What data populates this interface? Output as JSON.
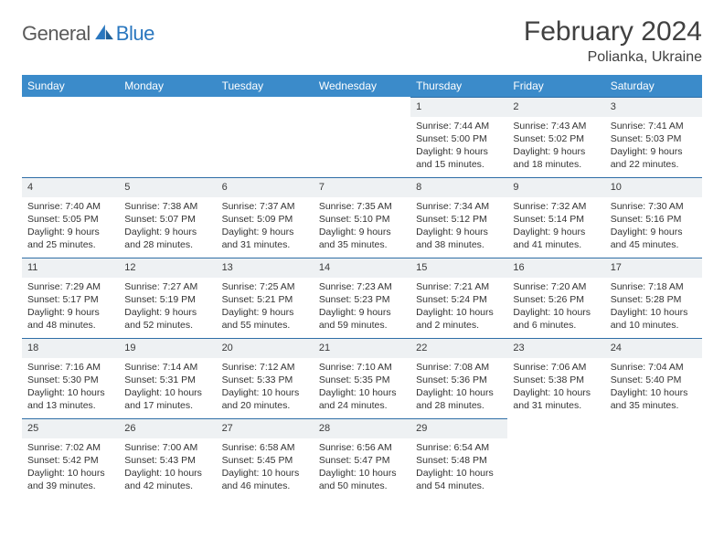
{
  "brand": {
    "general": "General",
    "blue": "Blue"
  },
  "header": {
    "title": "February 2024",
    "location": "Polianka, Ukraine"
  },
  "colors": {
    "header_bg": "#3b8bca",
    "header_text": "#ffffff",
    "daynum_bg": "#eef1f3",
    "daynum_border": "#2f6ea6",
    "body_text": "#333333",
    "logo_gray": "#5a5a5a",
    "logo_blue": "#2a77bf"
  },
  "weekdays": [
    "Sunday",
    "Monday",
    "Tuesday",
    "Wednesday",
    "Thursday",
    "Friday",
    "Saturday"
  ],
  "weeks": [
    [
      null,
      null,
      null,
      null,
      {
        "n": "1",
        "sr": "Sunrise: 7:44 AM",
        "ss": "Sunset: 5:00 PM",
        "d1": "Daylight: 9 hours",
        "d2": "and 15 minutes."
      },
      {
        "n": "2",
        "sr": "Sunrise: 7:43 AM",
        "ss": "Sunset: 5:02 PM",
        "d1": "Daylight: 9 hours",
        "d2": "and 18 minutes."
      },
      {
        "n": "3",
        "sr": "Sunrise: 7:41 AM",
        "ss": "Sunset: 5:03 PM",
        "d1": "Daylight: 9 hours",
        "d2": "and 22 minutes."
      }
    ],
    [
      {
        "n": "4",
        "sr": "Sunrise: 7:40 AM",
        "ss": "Sunset: 5:05 PM",
        "d1": "Daylight: 9 hours",
        "d2": "and 25 minutes."
      },
      {
        "n": "5",
        "sr": "Sunrise: 7:38 AM",
        "ss": "Sunset: 5:07 PM",
        "d1": "Daylight: 9 hours",
        "d2": "and 28 minutes."
      },
      {
        "n": "6",
        "sr": "Sunrise: 7:37 AM",
        "ss": "Sunset: 5:09 PM",
        "d1": "Daylight: 9 hours",
        "d2": "and 31 minutes."
      },
      {
        "n": "7",
        "sr": "Sunrise: 7:35 AM",
        "ss": "Sunset: 5:10 PM",
        "d1": "Daylight: 9 hours",
        "d2": "and 35 minutes."
      },
      {
        "n": "8",
        "sr": "Sunrise: 7:34 AM",
        "ss": "Sunset: 5:12 PM",
        "d1": "Daylight: 9 hours",
        "d2": "and 38 minutes."
      },
      {
        "n": "9",
        "sr": "Sunrise: 7:32 AM",
        "ss": "Sunset: 5:14 PM",
        "d1": "Daylight: 9 hours",
        "d2": "and 41 minutes."
      },
      {
        "n": "10",
        "sr": "Sunrise: 7:30 AM",
        "ss": "Sunset: 5:16 PM",
        "d1": "Daylight: 9 hours",
        "d2": "and 45 minutes."
      }
    ],
    [
      {
        "n": "11",
        "sr": "Sunrise: 7:29 AM",
        "ss": "Sunset: 5:17 PM",
        "d1": "Daylight: 9 hours",
        "d2": "and 48 minutes."
      },
      {
        "n": "12",
        "sr": "Sunrise: 7:27 AM",
        "ss": "Sunset: 5:19 PM",
        "d1": "Daylight: 9 hours",
        "d2": "and 52 minutes."
      },
      {
        "n": "13",
        "sr": "Sunrise: 7:25 AM",
        "ss": "Sunset: 5:21 PM",
        "d1": "Daylight: 9 hours",
        "d2": "and 55 minutes."
      },
      {
        "n": "14",
        "sr": "Sunrise: 7:23 AM",
        "ss": "Sunset: 5:23 PM",
        "d1": "Daylight: 9 hours",
        "d2": "and 59 minutes."
      },
      {
        "n": "15",
        "sr": "Sunrise: 7:21 AM",
        "ss": "Sunset: 5:24 PM",
        "d1": "Daylight: 10 hours",
        "d2": "and 2 minutes."
      },
      {
        "n": "16",
        "sr": "Sunrise: 7:20 AM",
        "ss": "Sunset: 5:26 PM",
        "d1": "Daylight: 10 hours",
        "d2": "and 6 minutes."
      },
      {
        "n": "17",
        "sr": "Sunrise: 7:18 AM",
        "ss": "Sunset: 5:28 PM",
        "d1": "Daylight: 10 hours",
        "d2": "and 10 minutes."
      }
    ],
    [
      {
        "n": "18",
        "sr": "Sunrise: 7:16 AM",
        "ss": "Sunset: 5:30 PM",
        "d1": "Daylight: 10 hours",
        "d2": "and 13 minutes."
      },
      {
        "n": "19",
        "sr": "Sunrise: 7:14 AM",
        "ss": "Sunset: 5:31 PM",
        "d1": "Daylight: 10 hours",
        "d2": "and 17 minutes."
      },
      {
        "n": "20",
        "sr": "Sunrise: 7:12 AM",
        "ss": "Sunset: 5:33 PM",
        "d1": "Daylight: 10 hours",
        "d2": "and 20 minutes."
      },
      {
        "n": "21",
        "sr": "Sunrise: 7:10 AM",
        "ss": "Sunset: 5:35 PM",
        "d1": "Daylight: 10 hours",
        "d2": "and 24 minutes."
      },
      {
        "n": "22",
        "sr": "Sunrise: 7:08 AM",
        "ss": "Sunset: 5:36 PM",
        "d1": "Daylight: 10 hours",
        "d2": "and 28 minutes."
      },
      {
        "n": "23",
        "sr": "Sunrise: 7:06 AM",
        "ss": "Sunset: 5:38 PM",
        "d1": "Daylight: 10 hours",
        "d2": "and 31 minutes."
      },
      {
        "n": "24",
        "sr": "Sunrise: 7:04 AM",
        "ss": "Sunset: 5:40 PM",
        "d1": "Daylight: 10 hours",
        "d2": "and 35 minutes."
      }
    ],
    [
      {
        "n": "25",
        "sr": "Sunrise: 7:02 AM",
        "ss": "Sunset: 5:42 PM",
        "d1": "Daylight: 10 hours",
        "d2": "and 39 minutes."
      },
      {
        "n": "26",
        "sr": "Sunrise: 7:00 AM",
        "ss": "Sunset: 5:43 PM",
        "d1": "Daylight: 10 hours",
        "d2": "and 42 minutes."
      },
      {
        "n": "27",
        "sr": "Sunrise: 6:58 AM",
        "ss": "Sunset: 5:45 PM",
        "d1": "Daylight: 10 hours",
        "d2": "and 46 minutes."
      },
      {
        "n": "28",
        "sr": "Sunrise: 6:56 AM",
        "ss": "Sunset: 5:47 PM",
        "d1": "Daylight: 10 hours",
        "d2": "and 50 minutes."
      },
      {
        "n": "29",
        "sr": "Sunrise: 6:54 AM",
        "ss": "Sunset: 5:48 PM",
        "d1": "Daylight: 10 hours",
        "d2": "and 54 minutes."
      },
      null,
      null
    ]
  ]
}
